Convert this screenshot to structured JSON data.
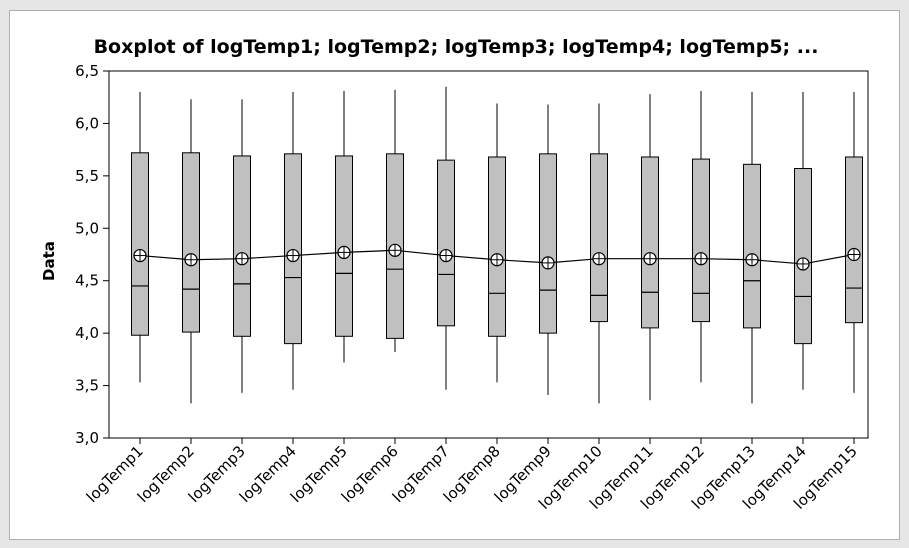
{
  "chart_data": {
    "type": "boxplot",
    "title": "Boxplot of logTemp1; logTemp2; logTemp3; logTemp4; logTemp5; ...",
    "ylabel": "Data",
    "ylim": [
      3.0,
      6.5
    ],
    "yticks": [
      "3,0",
      "3,5",
      "4,0",
      "4,5",
      "5,0",
      "5,5",
      "6,0",
      "6,5"
    ],
    "ytick_values": [
      3.0,
      3.5,
      4.0,
      4.5,
      5.0,
      5.5,
      6.0,
      6.5
    ],
    "categories": [
      "logTemp1",
      "logTemp2",
      "logTemp3",
      "logTemp4",
      "logTemp5",
      "logTemp6",
      "logTemp7",
      "logTemp8",
      "logTemp9",
      "logTemp10",
      "logTemp11",
      "logTemp12",
      "logTemp13",
      "logTemp14",
      "logTemp15"
    ],
    "whisker_low": [
      3.53,
      3.33,
      3.43,
      3.46,
      3.72,
      3.82,
      3.46,
      3.53,
      3.41,
      3.33,
      3.36,
      3.53,
      3.33,
      3.46,
      3.43
    ],
    "q1": [
      3.98,
      4.01,
      3.97,
      3.9,
      3.97,
      3.95,
      4.07,
      3.97,
      4.0,
      4.11,
      4.05,
      4.11,
      4.05,
      3.9,
      4.1
    ],
    "median": [
      4.45,
      4.42,
      4.47,
      4.53,
      4.57,
      4.61,
      4.56,
      4.38,
      4.41,
      4.36,
      4.39,
      4.38,
      4.5,
      4.35,
      4.43
    ],
    "q3": [
      5.72,
      5.72,
      5.69,
      5.71,
      5.69,
      5.71,
      5.65,
      5.68,
      5.71,
      5.71,
      5.68,
      5.66,
      5.61,
      5.57,
      5.68
    ],
    "whisker_high": [
      6.3,
      6.23,
      6.23,
      6.3,
      6.31,
      6.32,
      6.35,
      6.19,
      6.18,
      6.19,
      6.28,
      6.31,
      6.3,
      6.3,
      6.3
    ],
    "mean": [
      4.74,
      4.7,
      4.71,
      4.74,
      4.77,
      4.79,
      4.74,
      4.7,
      4.67,
      4.71,
      4.71,
      4.71,
      4.7,
      4.66,
      4.75
    ],
    "grid": false,
    "colors": {
      "box_fill": "#c0c0c0",
      "stroke": "#000000",
      "frame_bg": "#e6e6e6",
      "plot_bg": "#ffffff"
    }
  }
}
